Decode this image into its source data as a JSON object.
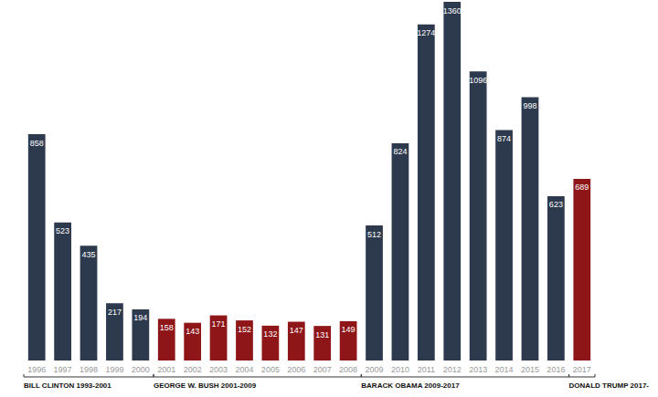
{
  "chart_data": {
    "type": "bar",
    "categories": [
      "1996",
      "1997",
      "1998",
      "1999",
      "2000",
      "2001",
      "2002",
      "2003",
      "2004",
      "2005",
      "2006",
      "2007",
      "2008",
      "2009",
      "2010",
      "2011",
      "2012",
      "2013",
      "2014",
      "2015",
      "2016",
      "2017"
    ],
    "values": [
      858,
      523,
      435,
      217,
      194,
      158,
      143,
      171,
      152,
      132,
      147,
      131,
      149,
      512,
      824,
      1274,
      1360,
      1096,
      874,
      998,
      623,
      689
    ],
    "colors": [
      "#2d3a4e",
      "#2d3a4e",
      "#2d3a4e",
      "#2d3a4e",
      "#2d3a4e",
      "#8e1518",
      "#8e1518",
      "#8e1518",
      "#8e1518",
      "#8e1518",
      "#8e1518",
      "#8e1518",
      "#8e1518",
      "#2d3a4e",
      "#2d3a4e",
      "#2d3a4e",
      "#2d3a4e",
      "#2d3a4e",
      "#2d3a4e",
      "#2d3a4e",
      "#2d3a4e",
      "#8e1518"
    ],
    "ylim": [
      0,
      1360
    ],
    "grid": false,
    "data_labels": true,
    "tick_labels": "x",
    "annotations": [
      {
        "text": "BILL CLINTON 1993-2001",
        "from": "1996",
        "to": "2000"
      },
      {
        "text": "GEORGE W. BUSH 2001-2009",
        "from": "2001",
        "to": "2008"
      },
      {
        "text": "BARACK OBAMA 2009-2017",
        "from": "2009",
        "to": "2016"
      },
      {
        "text": "DONALD TRUMP 2017-",
        "from": "2017",
        "to": "2017"
      }
    ]
  }
}
